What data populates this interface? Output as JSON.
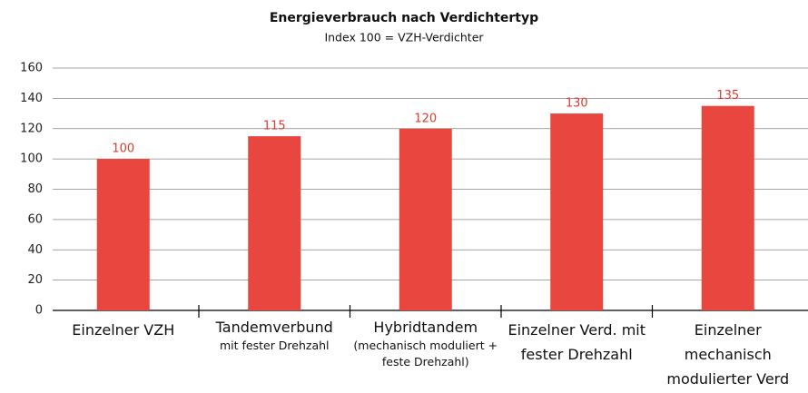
{
  "chart_data": {
    "type": "bar",
    "title": "Energieverbrauch nach Verdichtertyp",
    "subtitle": "Index 100 = VZH-Verdichter",
    "categories": [
      "Einzelner VZH",
      "Tandemverbund",
      "Hybridtandem",
      "Einzelner Verd. mit fester Drehzahl",
      "Einzelner mechanisch modulierter Verd"
    ],
    "category_notes": [
      null,
      "mit fester Drehzahl",
      "(mechanisch moduliert + feste Drehzahl)",
      null,
      null
    ],
    "values": [
      100,
      115,
      120,
      130,
      135
    ],
    "color": "#e8463f",
    "label_color": "#e03a30",
    "ylim": [
      0,
      160
    ],
    "yticks": [
      0,
      20,
      40,
      60,
      80,
      100,
      120,
      140,
      160
    ],
    "grid": true
  }
}
